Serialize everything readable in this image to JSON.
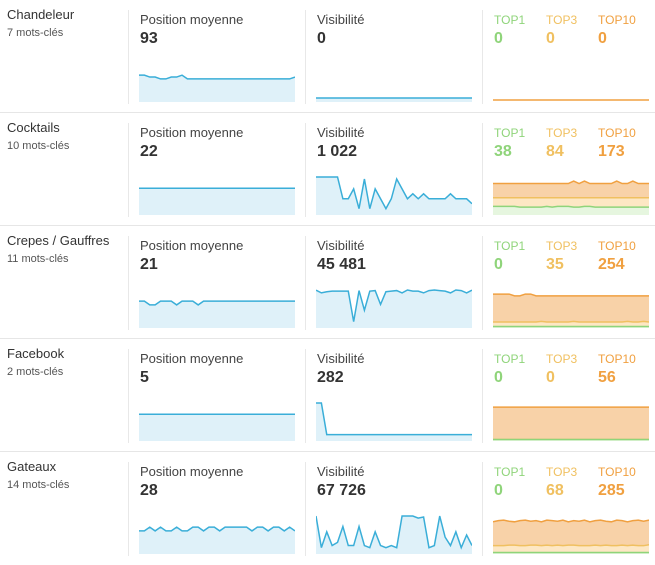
{
  "labels": {
    "position": "Position moyenne",
    "visibility": "Visibilité",
    "top1": "TOP1",
    "top3": "TOP3",
    "top10": "TOP10"
  },
  "colors": {
    "blue_line": "#3aaed8",
    "blue_fill": "#dff1f9",
    "top1": "#8fd47a",
    "top3": "#f0c060",
    "top10": "#f0a040",
    "top10_fill": "#f8d2a8"
  },
  "rows": [
    {
      "name": "Chandeleur",
      "keywords": "7 mots-clés",
      "position": "93",
      "visibility": "0",
      "top1": "0",
      "top3": "0",
      "top10": "0",
      "position_series": [
        93,
        93,
        94,
        94,
        95,
        95,
        94,
        94,
        93,
        95,
        95,
        95,
        95,
        95,
        95,
        95,
        95,
        95,
        95,
        95,
        95,
        95,
        95,
        95,
        95,
        95,
        95,
        95,
        95,
        94
      ],
      "visibility_series": [
        0,
        0,
        0,
        0,
        0,
        0,
        0,
        0,
        0,
        0,
        0,
        0,
        0,
        0,
        0,
        0,
        0,
        0,
        0,
        0,
        0,
        0,
        0,
        0,
        0,
        0,
        0,
        0,
        0,
        0
      ],
      "top1_series": [
        0,
        0,
        0,
        0,
        0,
        0,
        0,
        0,
        0,
        0,
        0,
        0,
        0,
        0,
        0,
        0,
        0,
        0,
        0,
        0,
        0,
        0,
        0,
        0,
        0,
        0,
        0,
        0,
        0,
        0
      ],
      "top3_series": [
        0,
        0,
        0,
        0,
        0,
        0,
        0,
        0,
        0,
        0,
        0,
        0,
        0,
        0,
        0,
        0,
        0,
        0,
        0,
        0,
        0,
        0,
        0,
        0,
        0,
        0,
        0,
        0,
        0,
        0
      ],
      "top10_series": [
        0,
        0,
        0,
        0,
        0,
        0,
        0,
        0,
        0,
        0,
        0,
        0,
        0,
        0,
        0,
        0,
        0,
        0,
        0,
        0,
        0,
        0,
        0,
        0,
        0,
        0,
        0,
        0,
        0,
        0
      ]
    },
    {
      "name": "Cocktails",
      "keywords": "10 mots-clés",
      "position": "22",
      "visibility": "1 022",
      "top1": "38",
      "top3": "84",
      "top10": "173",
      "position_series": [
        22,
        22,
        22,
        22,
        22,
        22,
        22,
        22,
        22,
        22,
        22,
        22,
        22,
        22,
        22,
        22,
        22,
        22,
        22,
        22,
        22,
        22,
        22,
        22,
        22,
        22,
        22,
        22,
        22,
        22
      ],
      "visibility_series": [
        1022,
        1022,
        1022,
        1022,
        1022,
        1000,
        1000,
        1010,
        990,
        1020,
        990,
        1010,
        1000,
        990,
        1000,
        1020,
        1010,
        1000,
        1005,
        1000,
        1005,
        1000,
        1000,
        1000,
        1000,
        1005,
        1000,
        1000,
        1000,
        995
      ],
      "top1_series": [
        38,
        38,
        38,
        38,
        38,
        34,
        34,
        34,
        34,
        34,
        38,
        34,
        38,
        38,
        38,
        34,
        34,
        38,
        38,
        34,
        34,
        34,
        34,
        34,
        34,
        34,
        34,
        34,
        34,
        34
      ],
      "top3_series": [
        84,
        84,
        84,
        84,
        84,
        84,
        84,
        84,
        84,
        84,
        84,
        84,
        84,
        84,
        84,
        84,
        84,
        84,
        84,
        84,
        84,
        84,
        84,
        84,
        84,
        84,
        84,
        84,
        84,
        84
      ],
      "top10_series": [
        160,
        160,
        160,
        160,
        160,
        160,
        160,
        160,
        160,
        160,
        160,
        160,
        160,
        160,
        160,
        173,
        160,
        173,
        160,
        160,
        160,
        160,
        160,
        173,
        160,
        160,
        173,
        160,
        160,
        160
      ]
    },
    {
      "name": "Crepes / Gauffres",
      "keywords": "11 mots-clés",
      "position": "21",
      "visibility": "45 481",
      "top1": "0",
      "top3": "35",
      "top10": "254",
      "position_series": [
        21,
        21,
        22,
        22,
        21,
        21,
        21,
        22,
        21,
        21,
        21,
        22,
        21,
        21,
        21,
        21,
        21,
        21,
        21,
        21,
        21,
        21,
        21,
        21,
        21,
        21,
        21,
        21,
        21,
        21
      ],
      "visibility_series": [
        45481,
        45000,
        45200,
        45300,
        45300,
        45300,
        45300,
        40000,
        45400,
        42000,
        45300,
        45400,
        43000,
        45200,
        45300,
        45400,
        45000,
        45500,
        45300,
        45300,
        45000,
        45400,
        45500,
        45400,
        45300,
        45000,
        45500,
        45400,
        45000,
        45481
      ],
      "top1_series": [
        0,
        0,
        0,
        0,
        0,
        0,
        0,
        0,
        0,
        0,
        0,
        0,
        0,
        0,
        0,
        0,
        0,
        0,
        0,
        0,
        0,
        0,
        0,
        0,
        0,
        0,
        0,
        0,
        0,
        0
      ],
      "top3_series": [
        35,
        35,
        35,
        35,
        35,
        35,
        35,
        35,
        35,
        40,
        35,
        35,
        35,
        35,
        35,
        40,
        35,
        35,
        35,
        35,
        35,
        35,
        35,
        35,
        35,
        40,
        35,
        35,
        40,
        35
      ],
      "top10_series": [
        254,
        254,
        254,
        254,
        240,
        240,
        254,
        254,
        240,
        240,
        240,
        240,
        240,
        240,
        240,
        240,
        240,
        240,
        240,
        240,
        240,
        240,
        240,
        240,
        240,
        240,
        240,
        240,
        240,
        240
      ]
    },
    {
      "name": "Facebook",
      "keywords": "2 mots-clés",
      "position": "5",
      "visibility": "282",
      "top1": "0",
      "top3": "0",
      "top10": "56",
      "position_series": [
        5,
        5,
        5,
        5,
        5,
        5,
        5,
        5,
        5,
        5,
        5,
        5,
        5,
        5,
        5,
        5,
        5,
        5,
        5,
        5,
        5,
        5,
        5,
        5,
        5,
        5,
        5,
        5,
        5,
        5
      ],
      "visibility_series": [
        300,
        300,
        282,
        282,
        282,
        282,
        282,
        282,
        282,
        282,
        282,
        282,
        282,
        282,
        282,
        282,
        282,
        282,
        282,
        282,
        282,
        282,
        282,
        282,
        282,
        282,
        282,
        282,
        282,
        282
      ],
      "top1_series": [
        0,
        0,
        0,
        0,
        0,
        0,
        0,
        0,
        0,
        0,
        0,
        0,
        0,
        0,
        0,
        0,
        0,
        0,
        0,
        0,
        0,
        0,
        0,
        0,
        0,
        0,
        0,
        0,
        0,
        0
      ],
      "top3_series": [
        0,
        0,
        0,
        0,
        0,
        0,
        0,
        0,
        0,
        0,
        0,
        0,
        0,
        0,
        0,
        0,
        0,
        0,
        0,
        0,
        0,
        0,
        0,
        0,
        0,
        0,
        0,
        0,
        0,
        0
      ],
      "top10_series": [
        56,
        56,
        56,
        56,
        56,
        56,
        56,
        56,
        56,
        56,
        56,
        56,
        56,
        56,
        56,
        56,
        56,
        56,
        56,
        56,
        56,
        56,
        56,
        56,
        56,
        56,
        56,
        56,
        56,
        56
      ]
    },
    {
      "name": "Gateaux",
      "keywords": "14 mots-clés",
      "position": "28",
      "visibility": "67 726",
      "top1": "0",
      "top3": "68",
      "top10": "285",
      "position_series": [
        28,
        28,
        27,
        28,
        27,
        28,
        28,
        27,
        28,
        28,
        27,
        27,
        28,
        27,
        27,
        28,
        27,
        27,
        27,
        27,
        27,
        28,
        27,
        27,
        28,
        27,
        27,
        28,
        27,
        28
      ],
      "visibility_series": [
        90000,
        60000,
        75000,
        62000,
        65000,
        80000,
        62000,
        62000,
        80000,
        62000,
        60000,
        75000,
        62000,
        60000,
        62000,
        60000,
        90000,
        90000,
        90000,
        88000,
        89000,
        60000,
        62000,
        90000,
        70000,
        62000,
        75000,
        60000,
        72000,
        62000
      ],
      "top1_series": [
        0,
        0,
        0,
        0,
        0,
        0,
        0,
        0,
        0,
        0,
        0,
        0,
        0,
        0,
        0,
        0,
        0,
        0,
        0,
        0,
        0,
        0,
        0,
        0,
        0,
        0,
        0,
        0,
        0,
        0
      ],
      "top3_series": [
        60,
        60,
        60,
        65,
        65,
        60,
        60,
        65,
        65,
        60,
        65,
        60,
        65,
        60,
        65,
        65,
        60,
        60,
        60,
        65,
        60,
        65,
        60,
        60,
        65,
        60,
        65,
        60,
        60,
        68
      ],
      "top10_series": [
        270,
        280,
        285,
        275,
        270,
        280,
        285,
        275,
        280,
        270,
        285,
        280,
        275,
        285,
        270,
        280,
        275,
        285,
        270,
        280,
        285,
        275,
        270,
        285,
        280,
        270,
        280,
        285,
        275,
        285
      ]
    }
  ]
}
